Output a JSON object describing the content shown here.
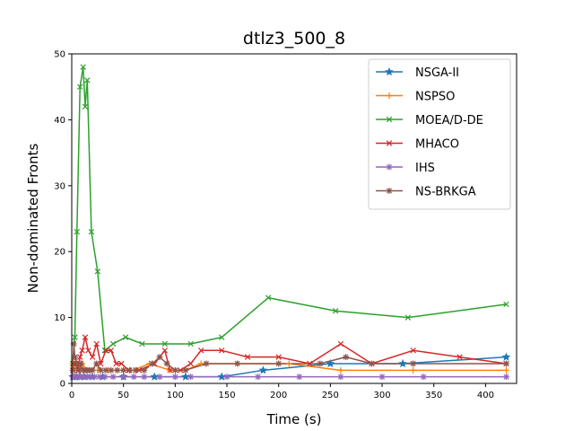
{
  "chart_data": {
    "type": "line",
    "title": "dtlz3_500_8",
    "xlabel": "Time (s)",
    "ylabel": "Non-dominated Fronts",
    "xlim": [
      0,
      430
    ],
    "ylim": [
      0,
      50
    ],
    "xticks": [
      0,
      50,
      100,
      150,
      200,
      250,
      300,
      350,
      400
    ],
    "yticks": [
      0,
      10,
      20,
      30,
      40,
      50
    ],
    "grid": false,
    "legend": "top-right",
    "series": [
      {
        "name": "NSGA-II",
        "color": "#1f77b4",
        "marker": "star",
        "x": [
          1,
          3,
          5,
          8,
          12,
          20,
          30,
          50,
          80,
          110,
          145,
          185,
          250,
          320,
          420
        ],
        "y": [
          1,
          1,
          1,
          1,
          1,
          1,
          1,
          1,
          1,
          1,
          1,
          2,
          3,
          3,
          4
        ]
      },
      {
        "name": "NSPSO",
        "color": "#ff7f0e",
        "marker": "plus",
        "x": [
          1,
          3,
          5,
          8,
          10,
          15,
          25,
          35,
          50,
          60,
          75,
          95,
          110,
          125,
          160,
          210,
          260,
          330,
          420
        ],
        "y": [
          3,
          2,
          3,
          2,
          3,
          2,
          2,
          2,
          2,
          2,
          3,
          2,
          2,
          3,
          3,
          3,
          2,
          2,
          2
        ]
      },
      {
        "name": "MOEA/D-DE",
        "color": "#2ca02c",
        "marker": "x",
        "x": [
          1,
          3,
          5,
          8,
          11,
          13,
          15,
          19,
          25,
          32,
          40,
          52,
          68,
          90,
          115,
          145,
          190,
          255,
          325,
          420
        ],
        "y": [
          3,
          7,
          23,
          45,
          48,
          42,
          46,
          23,
          17,
          5,
          6,
          7,
          6,
          6,
          6,
          7,
          13,
          11,
          10,
          12
        ]
      },
      {
        "name": "MHACO",
        "color": "#d62728",
        "marker": "x",
        "x": [
          1,
          2,
          4,
          6,
          8,
          10,
          13,
          16,
          20,
          24,
          28,
          33,
          38,
          43,
          48,
          55,
          65,
          80,
          90,
          95,
          105,
          115,
          125,
          145,
          170,
          200,
          230,
          260,
          290,
          330,
          375,
          420
        ],
        "y": [
          2,
          3,
          3,
          2,
          4,
          5,
          7,
          5,
          4,
          6,
          3,
          5,
          5,
          3,
          3,
          2,
          2,
          3,
          5,
          2,
          2,
          3,
          5,
          5,
          4,
          4,
          3,
          6,
          3,
          5,
          4,
          3
        ]
      },
      {
        "name": "IHS",
        "color": "#9467bd",
        "marker": "asterisk",
        "x": [
          1,
          3,
          5,
          7,
          10,
          12,
          15,
          18,
          22,
          27,
          32,
          40,
          50,
          60,
          70,
          85,
          100,
          115,
          150,
          180,
          220,
          260,
          300,
          340,
          420
        ],
        "y": [
          1,
          1,
          1,
          1,
          1,
          1,
          1,
          1,
          1,
          1,
          1,
          1,
          1,
          1,
          1,
          1,
          1,
          1,
          1,
          1,
          1,
          1,
          1,
          1,
          1
        ]
      },
      {
        "name": "NS-BRKGA",
        "color": "#8c564b",
        "marker": "asterisk",
        "x": [
          1,
          2,
          3,
          5,
          7,
          9,
          11,
          14,
          17,
          20,
          24,
          28,
          33,
          38,
          44,
          50,
          56,
          62,
          70,
          78,
          85,
          92,
          100,
          110,
          130,
          160,
          200,
          240,
          265,
          290,
          330,
          420
        ],
        "y": [
          2,
          6,
          4,
          3,
          2,
          3,
          2,
          2,
          2,
          2,
          3,
          2,
          2,
          2,
          2,
          2,
          2,
          2,
          2,
          3,
          4,
          3,
          2,
          2,
          3,
          3,
          3,
          3,
          4,
          3,
          3,
          3
        ]
      }
    ]
  }
}
